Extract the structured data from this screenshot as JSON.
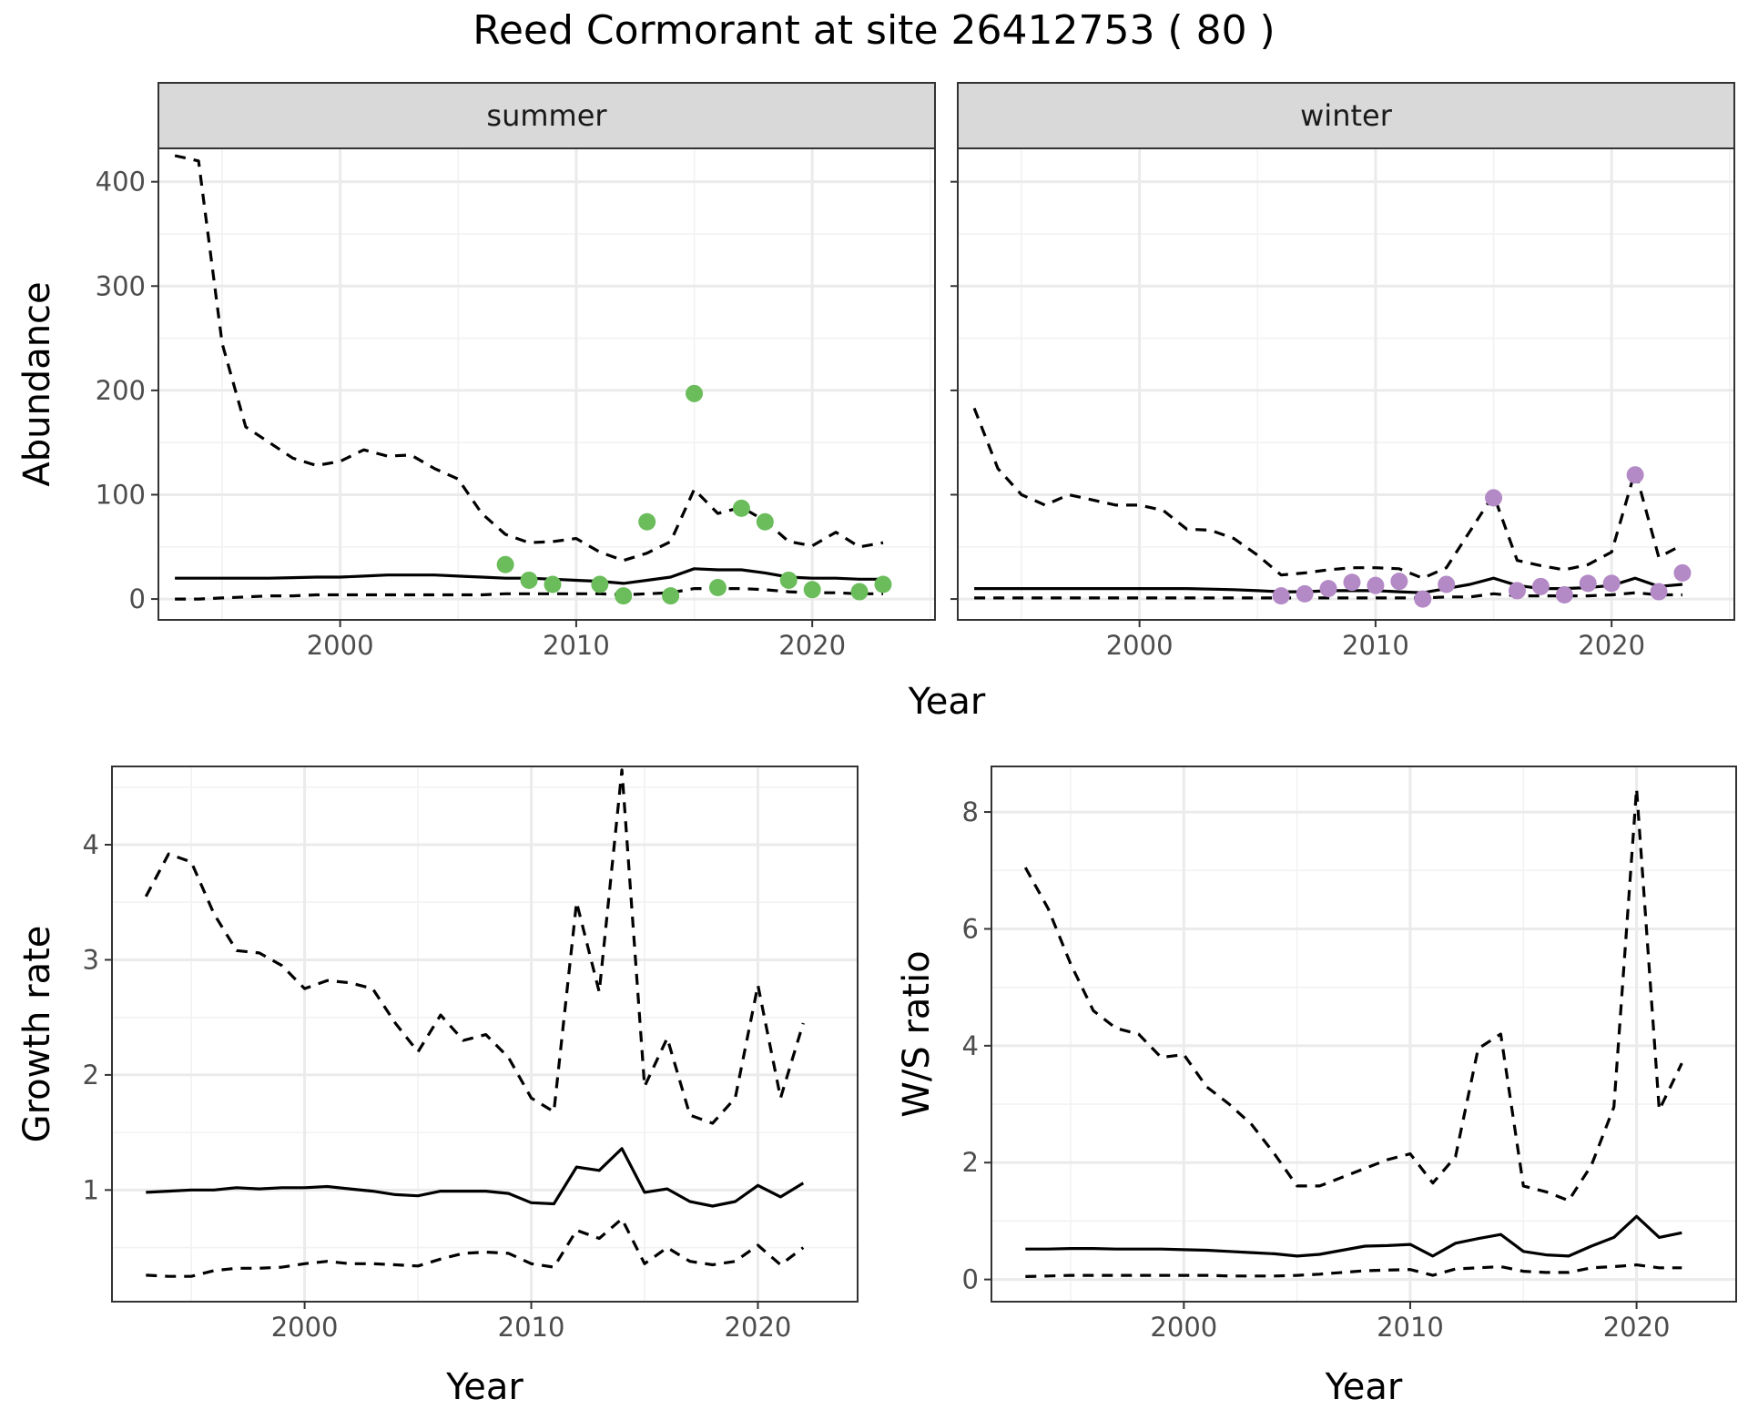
{
  "title": "Reed Cormorant at site 26412753 ( 80 )",
  "chart_data": [
    {
      "type": "line",
      "panel": "summer",
      "xlabel": "Year",
      "ylabel": "Abundance",
      "xlim": [
        1992.3,
        2025.2
      ],
      "ylim": [
        -20,
        432
      ],
      "xticks": [
        2000,
        2010,
        2020
      ],
      "yticks": [
        0,
        100,
        200,
        300,
        400
      ],
      "grid": true,
      "x": [
        1993,
        1994,
        1995,
        1996,
        1997,
        1998,
        1999,
        2000,
        2001,
        2002,
        2003,
        2004,
        2005,
        2006,
        2007,
        2008,
        2009,
        2010,
        2011,
        2012,
        2013,
        2014,
        2015,
        2016,
        2017,
        2018,
        2019,
        2020,
        2021,
        2022,
        2023
      ],
      "series": [
        {
          "style": "dashed",
          "values": [
            425,
            420,
            245,
            165,
            150,
            135,
            128,
            132,
            143,
            137,
            138,
            125,
            115,
            82,
            62,
            54,
            55,
            58,
            45,
            37,
            44,
            55,
            105,
            82,
            88,
            75,
            55,
            51,
            64,
            50,
            54
          ]
        },
        {
          "style": "solid",
          "values": [
            20,
            20,
            20,
            20,
            20,
            20.5,
            21,
            21,
            22,
            23,
            23,
            23,
            22,
            21,
            20,
            20,
            19,
            18,
            17,
            15,
            18,
            21,
            29,
            28,
            28,
            25,
            21,
            20,
            20,
            19,
            19
          ]
        },
        {
          "style": "dashed",
          "values": [
            0,
            0,
            1,
            2,
            3,
            3,
            4,
            4,
            4,
            4,
            4,
            4,
            4,
            4,
            5,
            5,
            5,
            5,
            5,
            4,
            5,
            6,
            10,
            10,
            10,
            9,
            7,
            6,
            6,
            5,
            5
          ]
        }
      ],
      "points": {
        "color": "#6bbc5b",
        "x": [
          2007,
          2008,
          2009,
          2011,
          2012,
          2013,
          2014,
          2015,
          2016,
          2017,
          2018,
          2019,
          2020,
          2022,
          2023
        ],
        "y": [
          33,
          18,
          14,
          14,
          3,
          74,
          3,
          197,
          11,
          87,
          74,
          18,
          9,
          7,
          14
        ]
      }
    },
    {
      "type": "line",
      "panel": "winter",
      "xlabel": "Year",
      "ylabel": "Abundance",
      "xlim": [
        1992.3,
        2025.2
      ],
      "ylim": [
        -20,
        432
      ],
      "xticks": [
        2000,
        2010,
        2020
      ],
      "yticks": [
        0,
        100,
        200,
        300,
        400
      ],
      "grid": true,
      "x": [
        1993,
        1994,
        1995,
        1996,
        1997,
        1998,
        1999,
        2000,
        2001,
        2002,
        2003,
        2004,
        2005,
        2006,
        2007,
        2008,
        2009,
        2010,
        2011,
        2012,
        2013,
        2014,
        2015,
        2016,
        2017,
        2018,
        2019,
        2020,
        2021,
        2022,
        2023
      ],
      "series": [
        {
          "style": "dashed",
          "values": [
            183,
            125,
            100,
            90,
            100,
            95,
            90,
            90,
            85,
            67,
            66,
            58,
            42,
            23,
            25,
            28,
            30,
            30,
            29,
            20,
            30,
            65,
            100,
            37,
            32,
            28,
            33,
            45,
            123,
            40,
            52
          ]
        },
        {
          "style": "solid",
          "values": [
            10,
            10,
            10,
            10,
            10,
            10,
            10,
            10,
            10,
            10,
            9.5,
            9,
            8,
            7,
            7,
            8,
            8,
            8,
            7,
            6,
            10,
            14,
            20,
            13,
            10,
            10,
            11,
            13,
            20,
            12,
            14
          ]
        },
        {
          "style": "dashed",
          "values": [
            1,
            1,
            1,
            1,
            1,
            1,
            1,
            1,
            1,
            1,
            1,
            1,
            1,
            1,
            1,
            1,
            1,
            1,
            1,
            1,
            2,
            2,
            5,
            3,
            3,
            3,
            3,
            4,
            6,
            4,
            4
          ]
        }
      ],
      "points": {
        "color": "#b389c6",
        "x": [
          2006,
          2007,
          2008,
          2009,
          2010,
          2011,
          2012,
          2013,
          2015,
          2016,
          2017,
          2018,
          2019,
          2020,
          2021,
          2022,
          2023
        ],
        "y": [
          3,
          5,
          10,
          16,
          13,
          17,
          0,
          14,
          97,
          8,
          12,
          4,
          15,
          15,
          119,
          7,
          25
        ]
      }
    },
    {
      "type": "line",
      "xlabel": "Year",
      "ylabel": "Growth rate",
      "xlim": [
        1991.5,
        2024.4
      ],
      "ylim": [
        0.03,
        4.68
      ],
      "xticks": [
        2000,
        2010,
        2020
      ],
      "yticks": [
        1,
        2,
        3,
        4
      ],
      "grid": true,
      "x": [
        1993,
        1994,
        1995,
        1996,
        1997,
        1998,
        1999,
        2000,
        2001,
        2002,
        2003,
        2004,
        2005,
        2006,
        2007,
        2008,
        2009,
        2010,
        2011,
        2012,
        2013,
        2014,
        2015,
        2016,
        2017,
        2018,
        2019,
        2020,
        2021,
        2022
      ],
      "series": [
        {
          "style": "dashed",
          "values": [
            3.55,
            3.92,
            3.85,
            3.4,
            3.08,
            3.06,
            2.95,
            2.75,
            2.82,
            2.8,
            2.75,
            2.45,
            2.2,
            2.52,
            2.3,
            2.35,
            2.15,
            1.8,
            1.68,
            3.5,
            2.72,
            4.65,
            1.9,
            2.32,
            1.65,
            1.58,
            1.8,
            2.78,
            1.8,
            2.45
          ]
        },
        {
          "style": "solid",
          "values": [
            0.98,
            0.99,
            1.0,
            1.0,
            1.02,
            1.01,
            1.02,
            1.02,
            1.03,
            1.01,
            0.99,
            0.96,
            0.95,
            0.99,
            0.99,
            0.99,
            0.97,
            0.89,
            0.88,
            1.2,
            1.17,
            1.36,
            0.98,
            1.01,
            0.9,
            0.86,
            0.9,
            1.04,
            0.94,
            1.06
          ]
        },
        {
          "style": "dashed",
          "values": [
            0.26,
            0.25,
            0.25,
            0.3,
            0.32,
            0.32,
            0.33,
            0.36,
            0.38,
            0.36,
            0.36,
            0.35,
            0.34,
            0.4,
            0.45,
            0.46,
            0.45,
            0.36,
            0.33,
            0.65,
            0.58,
            0.75,
            0.36,
            0.5,
            0.38,
            0.35,
            0.38,
            0.52,
            0.35,
            0.5
          ]
        }
      ]
    },
    {
      "type": "line",
      "xlabel": "Year",
      "ylabel": "W/S ratio",
      "xlim": [
        1991.5,
        2024.4
      ],
      "ylim": [
        -0.38,
        8.78
      ],
      "xticks": [
        2000,
        2010,
        2020
      ],
      "yticks": [
        0,
        2,
        4,
        6,
        8
      ],
      "grid": true,
      "x": [
        1993,
        1994,
        1995,
        1996,
        1997,
        1998,
        1999,
        2000,
        2001,
        2002,
        2003,
        2004,
        2005,
        2006,
        2007,
        2008,
        2009,
        2010,
        2011,
        2012,
        2013,
        2014,
        2015,
        2016,
        2017,
        2018,
        2019,
        2020,
        2021,
        2022
      ],
      "series": [
        {
          "style": "dashed",
          "values": [
            7.05,
            6.35,
            5.4,
            4.6,
            4.3,
            4.2,
            3.8,
            3.85,
            3.3,
            3.0,
            2.65,
            2.15,
            1.6,
            1.6,
            1.75,
            1.9,
            2.05,
            2.15,
            1.65,
            2.1,
            3.95,
            4.2,
            1.6,
            1.5,
            1.35,
            1.95,
            2.95,
            8.4,
            2.9,
            3.7
          ]
        },
        {
          "style": "solid",
          "values": [
            0.52,
            0.52,
            0.53,
            0.53,
            0.52,
            0.52,
            0.52,
            0.51,
            0.5,
            0.48,
            0.46,
            0.44,
            0.4,
            0.43,
            0.5,
            0.57,
            0.58,
            0.6,
            0.4,
            0.62,
            0.7,
            0.77,
            0.48,
            0.42,
            0.4,
            0.57,
            0.72,
            1.08,
            0.72,
            0.8
          ]
        },
        {
          "style": "dashed",
          "values": [
            0.05,
            0.06,
            0.07,
            0.07,
            0.07,
            0.07,
            0.07,
            0.07,
            0.07,
            0.06,
            0.06,
            0.06,
            0.07,
            0.09,
            0.12,
            0.15,
            0.16,
            0.17,
            0.07,
            0.18,
            0.2,
            0.22,
            0.14,
            0.12,
            0.12,
            0.2,
            0.22,
            0.25,
            0.2,
            0.2
          ]
        }
      ]
    }
  ]
}
